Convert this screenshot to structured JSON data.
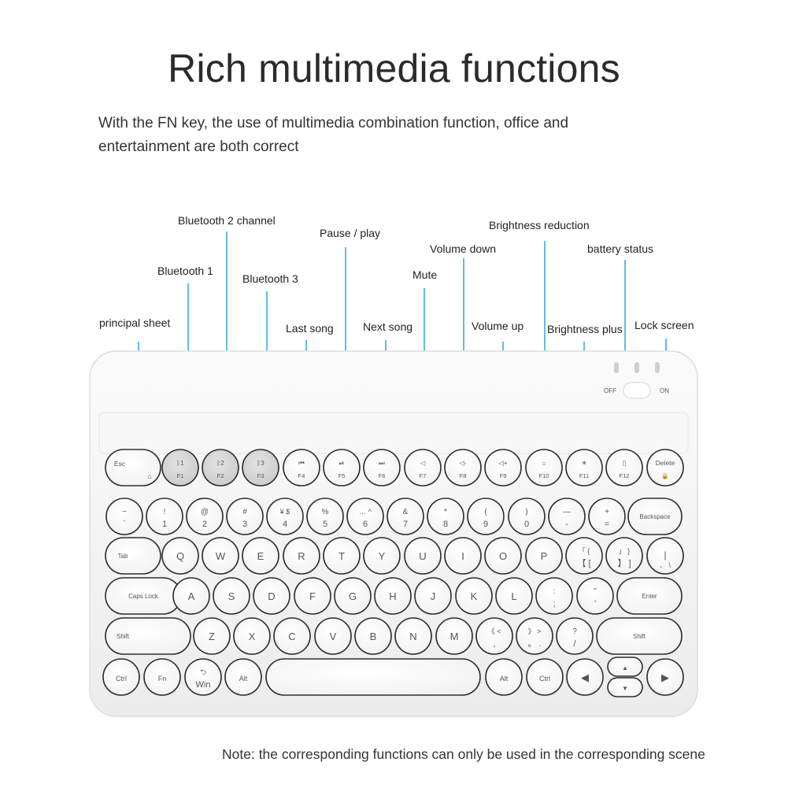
{
  "header": {
    "title": "Rich multimedia functions",
    "subtitle": "With the FN key, the use of multimedia combination function, office and entertainment are both correct"
  },
  "callouts": [
    {
      "label": "Bluetooth 2 channel"
    },
    {
      "label": "Pause / play"
    },
    {
      "label": "Brightness reduction"
    },
    {
      "label": "Volume down"
    },
    {
      "label": "battery status"
    },
    {
      "label": "Bluetooth 1"
    },
    {
      "label": "Bluetooth 3"
    },
    {
      "label": "Mute"
    },
    {
      "label": "principal sheet"
    },
    {
      "label": "Last song"
    },
    {
      "label": "Next song"
    },
    {
      "label": "Volume up"
    },
    {
      "label": "Brightness plus"
    },
    {
      "label": "Lock screen"
    }
  ],
  "switch": {
    "off_label": "OFF",
    "on_label": "ON"
  },
  "keyboard": {
    "rows": [
      [
        {
          "main": "Esc",
          "sub": "⌂"
        },
        {
          "main": "ᛒ1",
          "sub": "F1"
        },
        {
          "main": "ᛒ2",
          "sub": "F2"
        },
        {
          "main": "ᛒ3",
          "sub": "F3"
        },
        {
          "main": "⏮",
          "sub": "F4"
        },
        {
          "main": "⏯",
          "sub": "F5"
        },
        {
          "main": "⏭",
          "sub": "F6"
        },
        {
          "main": "◁",
          "sub": "F7"
        },
        {
          "main": "◁-",
          "sub": "F8"
        },
        {
          "main": "◁+",
          "sub": "F9"
        },
        {
          "main": "☼",
          "sub": "F10"
        },
        {
          "main": "☀",
          "sub": "F11"
        },
        {
          "main": "▯",
          "sub": "F12"
        },
        {
          "main": "Delete",
          "sub": "🔒"
        }
      ],
      [
        {
          "main": "~",
          "sub": "`"
        },
        {
          "main": "!",
          "sub": "1"
        },
        {
          "main": "@",
          "sub": "2"
        },
        {
          "main": "#",
          "sub": "3"
        },
        {
          "main": "¥ $",
          "sub": "4"
        },
        {
          "main": "%",
          "sub": "5"
        },
        {
          "main": "… ^",
          "sub": "6"
        },
        {
          "main": "&",
          "sub": "7"
        },
        {
          "main": "*",
          "sub": "8"
        },
        {
          "main": "(",
          "sub": "9"
        },
        {
          "main": ")",
          "sub": "0"
        },
        {
          "main": "—",
          "sub": "-"
        },
        {
          "main": "+",
          "sub": "="
        },
        {
          "main": "Backspace",
          "sub": ""
        }
      ],
      [
        {
          "main": "Tab",
          "sub": ""
        },
        {
          "main": "Q",
          "sub": ""
        },
        {
          "main": "W",
          "sub": ""
        },
        {
          "main": "E",
          "sub": ""
        },
        {
          "main": "R",
          "sub": ""
        },
        {
          "main": "T",
          "sub": ""
        },
        {
          "main": "Y",
          "sub": ""
        },
        {
          "main": "U",
          "sub": ""
        },
        {
          "main": "I",
          "sub": ""
        },
        {
          "main": "O",
          "sub": ""
        },
        {
          "main": "P",
          "sub": ""
        },
        {
          "main": "「 {",
          "sub": "【 ["
        },
        {
          "main": "」 }",
          "sub": "】 ]"
        },
        {
          "main": "|",
          "sub": "、 \\"
        }
      ],
      [
        {
          "main": "Caps Lock",
          "sub": ""
        },
        {
          "main": "A",
          "sub": ""
        },
        {
          "main": "S",
          "sub": ""
        },
        {
          "main": "D",
          "sub": ""
        },
        {
          "main": "F",
          "sub": ""
        },
        {
          "main": "G",
          "sub": ""
        },
        {
          "main": "H",
          "sub": ""
        },
        {
          "main": "J",
          "sub": ""
        },
        {
          "main": "K",
          "sub": ""
        },
        {
          "main": "L",
          "sub": ""
        },
        {
          "main": ":",
          "sub": ";"
        },
        {
          "main": "\"",
          "sub": "'"
        },
        {
          "main": "Enter",
          "sub": ""
        }
      ],
      [
        {
          "main": "Shift",
          "sub": ""
        },
        {
          "main": "Z",
          "sub": ""
        },
        {
          "main": "X",
          "sub": ""
        },
        {
          "main": "C",
          "sub": ""
        },
        {
          "main": "V",
          "sub": ""
        },
        {
          "main": "B",
          "sub": ""
        },
        {
          "main": "N",
          "sub": ""
        },
        {
          "main": "M",
          "sub": ""
        },
        {
          "main": "《 <",
          "sub": ","
        },
        {
          "main": "》 >",
          "sub": "。 ."
        },
        {
          "main": "?",
          "sub": "/"
        },
        {
          "main": "Shift",
          "sub": ""
        }
      ],
      [
        {
          "main": "Ctrl",
          "sub": ""
        },
        {
          "main": "Fn",
          "sub": ""
        },
        {
          "main": "⮌",
          "sub": "Win"
        },
        {
          "main": "Alt",
          "sub": ""
        },
        {
          "main": "",
          "sub": ""
        },
        {
          "main": "Alt",
          "sub": ""
        },
        {
          "main": "Ctrl",
          "sub": ""
        },
        {
          "main": "◀",
          "sub": ""
        },
        {
          "main": "▲",
          "sub": ""
        },
        {
          "main": "▼",
          "sub": ""
        },
        {
          "main": "▶",
          "sub": ""
        }
      ]
    ]
  },
  "footer": {
    "note": "Note: the corresponding functions can only be used in the corresponding scene"
  },
  "colors": {
    "leader": "#5dbfe3",
    "body": "#f4f4f4",
    "key": "#ffffff",
    "key_highlight": "#cfcfcf"
  }
}
